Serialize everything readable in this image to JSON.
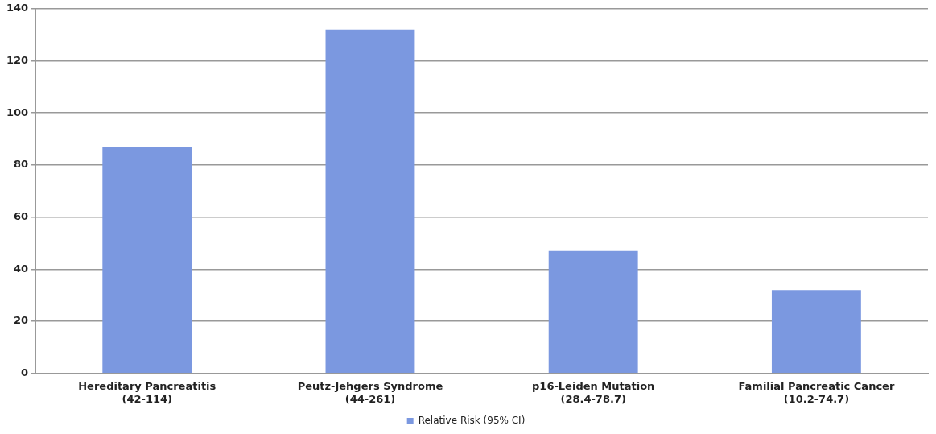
{
  "chart_data": {
    "type": "bar",
    "categories": [
      "Hereditary Pancreatitis\n(42-114)",
      "Peutz-Jehgers Syndrome\n(44-261)",
      "p16-Leiden Mutation\n(28.4-78.7)",
      "Familial Pancreatic Cancer\n(10.2-74.7)"
    ],
    "series": [
      {
        "name": "Relative Risk (95% CI)",
        "color": "#7b98e0",
        "values": [
          87,
          132,
          47,
          32
        ]
      }
    ],
    "ylim": [
      0,
      140
    ],
    "yticks": [
      0,
      20,
      40,
      60,
      80,
      100,
      120,
      140
    ],
    "grid": "y",
    "legend": "bottom"
  }
}
